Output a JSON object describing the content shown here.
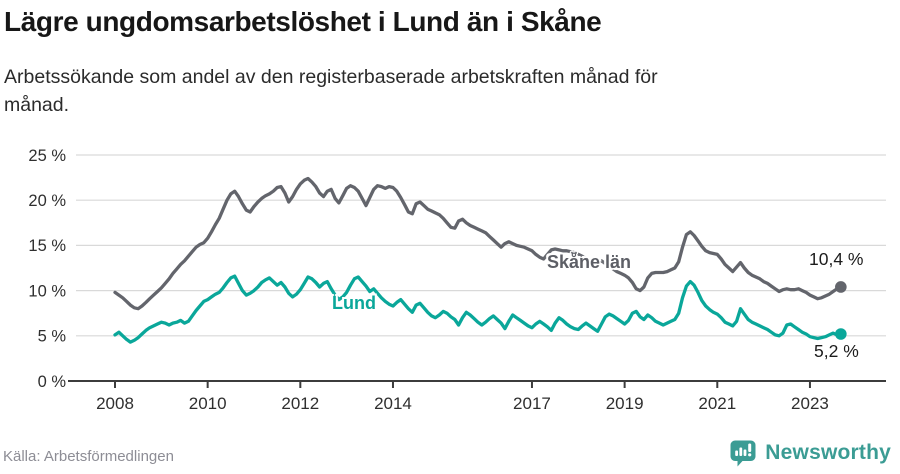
{
  "header": {
    "title": "Lägre ungdomsarbetslöshet i Lund än i Skåne",
    "subtitle_lines": [
      "Arbetssökande som andel av den registerbaserade arbetskraften månad för",
      "månad."
    ]
  },
  "footer": {
    "source": "Källa: Arbetsförmedlingen",
    "brand": "Newsworthy",
    "brand_color": "#3b9c94",
    "logo_icon": "bar-chart-speech-bubble-icon"
  },
  "chart_data": {
    "type": "line",
    "title": "Lägre ungdomsarbetslöshet i Lund än i Skåne",
    "subtitle": "Arbetssökande som andel av den registerbaserade arbetskraften månad för månad.",
    "source": "Källa: Arbetsförmedlingen",
    "x_unit": "month",
    "x_start": "2008-01",
    "x_end": "2023-09",
    "grid": "horizontal",
    "legend_position": "inline-labels",
    "ylim": [
      0,
      25
    ],
    "y_ticks": [
      {
        "value": 0,
        "label": "0 %"
      },
      {
        "value": 5,
        "label": "5 %"
      },
      {
        "value": 10,
        "label": "10 %"
      },
      {
        "value": 15,
        "label": "15 %"
      },
      {
        "value": 20,
        "label": "20 %"
      },
      {
        "value": 25,
        "label": "25 %"
      }
    ],
    "x_ticks": [
      {
        "year": 2008,
        "label": "2008"
      },
      {
        "year": 2010,
        "label": "2010"
      },
      {
        "year": 2012,
        "label": "2012"
      },
      {
        "year": 2014,
        "label": "2014"
      },
      {
        "year": 2017,
        "label": "2017"
      },
      {
        "year": 2019,
        "label": "2019"
      },
      {
        "year": 2021,
        "label": "2021"
      },
      {
        "year": 2023,
        "label": "2023"
      }
    ],
    "series": [
      {
        "name": "Skåne län",
        "color": "#63656c",
        "end_label": "10,4 %",
        "end_value": 10.4,
        "values": [
          9.8,
          9.5,
          9.2,
          8.8,
          8.4,
          8.1,
          8.0,
          8.3,
          8.7,
          9.1,
          9.5,
          9.9,
          10.3,
          10.8,
          11.3,
          11.9,
          12.4,
          12.9,
          13.3,
          13.8,
          14.3,
          14.8,
          15.1,
          15.3,
          15.8,
          16.5,
          17.3,
          18.0,
          19.0,
          20.0,
          20.7,
          21.0,
          20.4,
          19.6,
          18.9,
          18.7,
          19.3,
          19.8,
          20.2,
          20.5,
          20.7,
          21.0,
          21.4,
          21.5,
          20.8,
          19.8,
          20.4,
          21.2,
          21.8,
          22.2,
          22.4,
          22.0,
          21.5,
          20.8,
          20.4,
          21.0,
          21.2,
          20.2,
          19.7,
          20.5,
          21.3,
          21.6,
          21.4,
          21.0,
          20.2,
          19.4,
          20.3,
          21.2,
          21.6,
          21.5,
          21.3,
          21.5,
          21.4,
          21.0,
          20.3,
          19.5,
          18.7,
          18.5,
          19.6,
          19.8,
          19.4,
          19.0,
          18.8,
          18.6,
          18.4,
          18.0,
          17.5,
          17.0,
          16.9,
          17.7,
          17.9,
          17.5,
          17.2,
          17.0,
          16.8,
          16.6,
          16.4,
          16.0,
          15.6,
          15.2,
          14.8,
          15.2,
          15.4,
          15.2,
          15.0,
          14.9,
          14.8,
          14.6,
          14.4,
          14.0,
          13.7,
          13.5,
          14.0,
          14.5,
          14.6,
          14.5,
          14.4,
          14.4,
          14.3,
          14.2,
          14.0,
          13.8,
          13.5,
          13.2,
          12.9,
          13.1,
          13.3,
          13.0,
          12.7,
          12.4,
          12.1,
          11.9,
          11.7,
          11.4,
          10.9,
          10.2,
          10.0,
          10.4,
          11.4,
          11.9,
          12.0,
          12.0,
          12.0,
          12.1,
          12.3,
          12.5,
          13.2,
          14.8,
          16.2,
          16.5,
          16.1,
          15.5,
          14.9,
          14.4,
          14.2,
          14.1,
          14.0,
          13.5,
          12.9,
          12.5,
          12.1,
          12.6,
          13.1,
          12.5,
          12.0,
          11.7,
          11.5,
          11.3,
          11.0,
          10.8,
          10.5,
          10.2,
          9.9,
          10.1,
          10.2,
          10.1,
          10.1,
          10.2,
          10.0,
          9.8,
          9.5,
          9.3,
          9.1,
          9.2,
          9.4,
          9.6,
          9.9,
          10.2,
          10.4
        ]
      },
      {
        "name": "Lund",
        "color": "#0aa79a",
        "end_label": "5,2 %",
        "end_value": 5.2,
        "values": [
          5.1,
          5.4,
          5.0,
          4.6,
          4.3,
          4.5,
          4.8,
          5.2,
          5.6,
          5.9,
          6.1,
          6.3,
          6.5,
          6.4,
          6.2,
          6.4,
          6.5,
          6.7,
          6.4,
          6.6,
          7.2,
          7.8,
          8.3,
          8.8,
          9.0,
          9.3,
          9.6,
          9.8,
          10.3,
          10.9,
          11.4,
          11.6,
          10.8,
          10.0,
          9.5,
          9.7,
          10.0,
          10.4,
          10.9,
          11.2,
          11.4,
          11.0,
          10.6,
          10.9,
          10.4,
          9.7,
          9.3,
          9.6,
          10.1,
          10.8,
          11.5,
          11.3,
          10.9,
          10.4,
          10.8,
          11.0,
          10.2,
          9.5,
          9.0,
          9.3,
          9.8,
          10.6,
          11.3,
          11.5,
          11.0,
          10.5,
          9.9,
          10.2,
          9.7,
          9.2,
          8.8,
          8.5,
          8.3,
          8.7,
          9.0,
          8.5,
          8.0,
          7.6,
          8.4,
          8.6,
          8.1,
          7.6,
          7.2,
          7.0,
          7.3,
          7.7,
          7.5,
          7.1,
          6.8,
          6.2,
          7.0,
          7.6,
          7.3,
          6.9,
          6.5,
          6.2,
          6.5,
          6.9,
          7.2,
          6.8,
          6.4,
          5.8,
          6.6,
          7.3,
          7.0,
          6.7,
          6.4,
          6.1,
          5.9,
          6.3,
          6.6,
          6.3,
          6.0,
          5.6,
          6.4,
          7.0,
          6.7,
          6.3,
          6.0,
          5.8,
          5.7,
          6.1,
          6.4,
          6.1,
          5.8,
          5.5,
          6.3,
          7.1,
          7.4,
          7.2,
          6.9,
          6.6,
          6.3,
          6.7,
          7.5,
          7.7,
          7.1,
          6.8,
          7.3,
          7.0,
          6.6,
          6.4,
          6.2,
          6.4,
          6.6,
          6.8,
          7.5,
          9.2,
          10.5,
          11.0,
          10.6,
          9.8,
          8.9,
          8.3,
          7.9,
          7.6,
          7.4,
          7.0,
          6.5,
          6.3,
          6.1,
          6.6,
          8.0,
          7.4,
          6.8,
          6.5,
          6.3,
          6.1,
          5.9,
          5.7,
          5.4,
          5.1,
          5.0,
          5.3,
          6.2,
          6.3,
          6.0,
          5.7,
          5.4,
          5.2,
          4.9,
          4.8,
          4.7,
          4.8,
          4.9,
          5.1,
          5.3,
          5.1,
          5.2
        ]
      }
    ]
  }
}
